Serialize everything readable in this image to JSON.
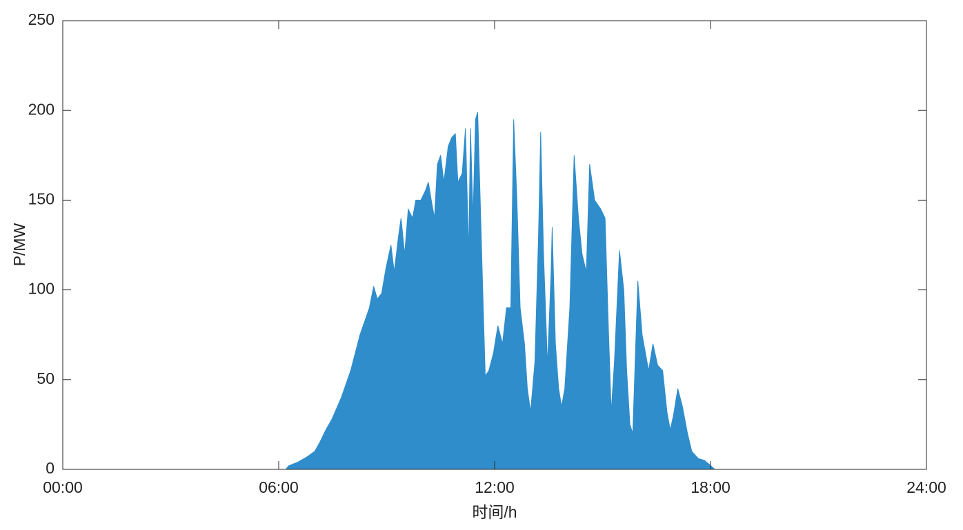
{
  "chart_data": {
    "type": "area",
    "xlabel": "时间/h",
    "ylabel": "P/MW",
    "color": "#2f8dcc",
    "xlim": [
      0,
      24
    ],
    "ylim": [
      0,
      250
    ],
    "xticks": [
      {
        "value": 0,
        "label": "00:00"
      },
      {
        "value": 6,
        "label": "06:00"
      },
      {
        "value": 12,
        "label": "12:00"
      },
      {
        "value": 18,
        "label": "18:00"
      },
      {
        "value": 24,
        "label": "24:00"
      }
    ],
    "yticks": [
      0,
      50,
      100,
      150,
      200,
      250
    ],
    "x": [
      0,
      6.2,
      6.28,
      6.53,
      6.79,
      7.0,
      7.14,
      7.31,
      7.48,
      7.74,
      8.0,
      8.26,
      8.52,
      8.64,
      8.74,
      8.86,
      8.98,
      9.12,
      9.21,
      9.33,
      9.4,
      9.5,
      9.6,
      9.72,
      9.81,
      9.95,
      10.07,
      10.16,
      10.24,
      10.33,
      10.41,
      10.5,
      10.59,
      10.71,
      10.81,
      10.91,
      10.98,
      11.1,
      11.19,
      11.28,
      11.33,
      11.4,
      11.47,
      11.53,
      11.6,
      11.67,
      11.74,
      11.84,
      11.97,
      12.09,
      12.22,
      12.33,
      12.45,
      12.53,
      12.62,
      12.71,
      12.83,
      12.91,
      13.0,
      13.12,
      13.22,
      13.28,
      13.36,
      13.47,
      13.57,
      13.6,
      13.69,
      13.78,
      13.86,
      13.95,
      14.09,
      14.21,
      14.33,
      14.43,
      14.55,
      14.64,
      14.78,
      14.95,
      15.07,
      15.16,
      15.24,
      15.33,
      15.47,
      15.59,
      15.67,
      15.76,
      15.84,
      15.98,
      16.1,
      16.28,
      16.4,
      16.53,
      16.67,
      16.79,
      16.88,
      16.97,
      17.09,
      17.22,
      17.36,
      17.48,
      17.66,
      17.83,
      17.95,
      18.12,
      18.2,
      24
    ],
    "values": [
      0,
      0,
      2,
      4,
      7,
      10,
      15,
      22,
      28,
      40,
      55,
      75,
      90,
      102,
      95,
      98,
      112,
      125,
      110,
      130,
      140,
      120,
      145,
      140,
      150,
      150,
      155,
      160,
      150,
      140,
      170,
      175,
      160,
      180,
      185,
      187,
      160,
      165,
      190,
      120,
      190,
      140,
      195,
      199,
      150,
      100,
      52,
      55,
      65,
      80,
      70,
      90,
      90,
      195,
      150,
      90,
      70,
      45,
      32,
      60,
      130,
      188,
      120,
      58,
      110,
      135,
      70,
      45,
      35,
      45,
      90,
      175,
      140,
      120,
      110,
      170,
      150,
      145,
      140,
      80,
      32,
      60,
      122,
      100,
      55,
      25,
      20,
      105,
      75,
      55,
      70,
      58,
      55,
      32,
      22,
      30,
      45,
      35,
      20,
      10,
      6,
      5,
      3,
      0,
      0,
      0
    ]
  }
}
